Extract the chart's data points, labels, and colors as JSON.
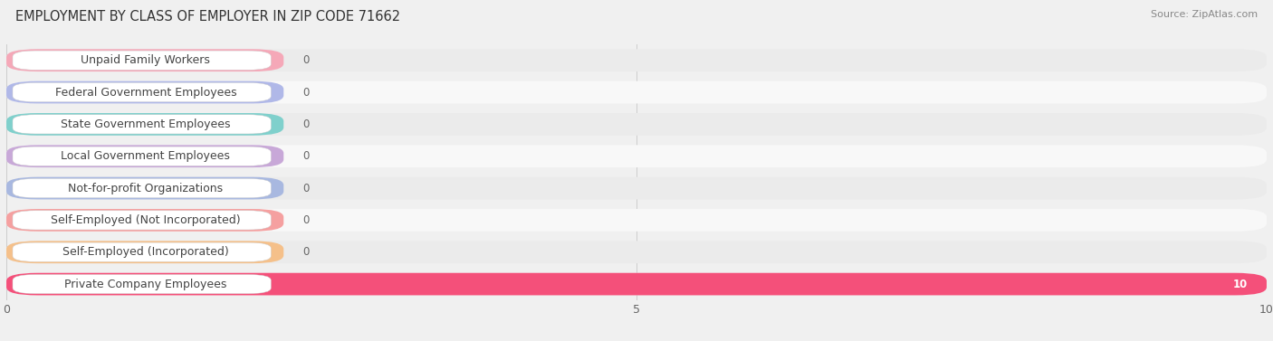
{
  "title": "EMPLOYMENT BY CLASS OF EMPLOYER IN ZIP CODE 71662",
  "source": "Source: ZipAtlas.com",
  "categories": [
    "Private Company Employees",
    "Self-Employed (Incorporated)",
    "Self-Employed (Not Incorporated)",
    "Not-for-profit Organizations",
    "Local Government Employees",
    "State Government Employees",
    "Federal Government Employees",
    "Unpaid Family Workers"
  ],
  "values": [
    10,
    0,
    0,
    0,
    0,
    0,
    0,
    0
  ],
  "bar_colors": [
    "#f4507a",
    "#f5c08a",
    "#f5a0a0",
    "#a8b8e0",
    "#c8a8d8",
    "#7fd0cc",
    "#b0b8e8",
    "#f5a8b8"
  ],
  "xlim": [
    0,
    10
  ],
  "xticks": [
    0,
    5,
    10
  ],
  "background_color": "#f0f0f0",
  "row_light": "#f8f8f8",
  "row_dark": "#ebebeb",
  "title_fontsize": 10.5,
  "label_fontsize": 9,
  "value_fontsize": 8.5
}
